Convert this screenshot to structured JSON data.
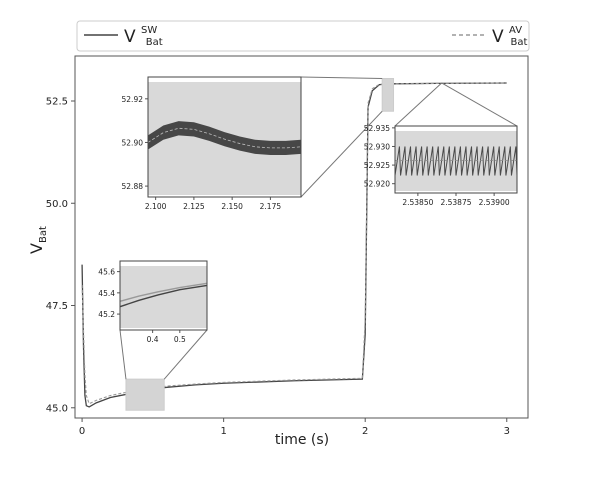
{
  "chart_data": [
    {
      "id": "main",
      "type": "line",
      "xlabel": "time (s)",
      "ylabel": {
        "base": "V",
        "sub": "Bat"
      },
      "xlim": [
        -0.05,
        3.15
      ],
      "ylim": [
        44.75,
        53.6
      ],
      "xticks": [
        0,
        1,
        2,
        3
      ],
      "xtick_labels": [
        "0",
        "1",
        "2",
        "3"
      ],
      "yticks": [
        45.0,
        47.5,
        50.0,
        52.5
      ],
      "ytick_labels": [
        "45.0",
        "47.5",
        "50.0",
        "52.5"
      ],
      "grid": false,
      "legend": {
        "placement": "top",
        "entries": [
          {
            "base": "V",
            "sup": "SW",
            "sub": "Bat",
            "style": "solid"
          },
          {
            "base": "V",
            "sup": "AV",
            "sub": "Bat",
            "style": "dashed"
          }
        ]
      },
      "series": [
        {
          "style": "solid",
          "color": "#444444",
          "x": [
            0.0,
            0.01,
            0.02,
            0.03,
            0.05,
            0.1,
            0.2,
            0.3,
            0.4,
            0.5,
            0.6,
            0.8,
            1.0,
            1.5,
            1.98,
            2.0,
            2.02,
            2.05,
            2.1,
            2.2,
            2.5,
            3.0
          ],
          "y": [
            48.5,
            46.5,
            45.3,
            45.05,
            45.02,
            45.12,
            45.25,
            45.32,
            45.4,
            45.46,
            45.5,
            45.56,
            45.6,
            45.66,
            45.7,
            46.8,
            52.35,
            52.75,
            52.9,
            52.92,
            52.93,
            52.94
          ]
        },
        {
          "style": "dashed",
          "color": "#999999",
          "x": [
            0.0,
            0.01,
            0.02,
            0.03,
            0.05,
            0.1,
            0.2,
            0.3,
            0.4,
            0.5,
            0.6,
            0.8,
            1.0,
            1.5,
            1.98,
            2.0,
            2.02,
            2.05,
            2.1,
            2.2,
            2.5,
            3.0
          ],
          "y": [
            48.0,
            46.9,
            45.8,
            45.3,
            45.1,
            45.18,
            45.3,
            45.37,
            45.43,
            45.49,
            45.53,
            45.58,
            45.62,
            45.68,
            45.72,
            47.2,
            52.45,
            52.8,
            52.91,
            52.92,
            52.93,
            52.94
          ]
        }
      ]
    },
    {
      "id": "inset_top",
      "type": "line",
      "xlim": [
        2.095,
        2.195
      ],
      "ylim": [
        52.875,
        52.93
      ],
      "xticks": [
        2.1,
        2.125,
        2.15,
        2.175
      ],
      "xtick_labels": [
        "2.100",
        "2.125",
        "2.150",
        "2.175"
      ],
      "yticks": [
        52.88,
        52.9,
        52.92
      ],
      "ytick_labels": [
        "52.88",
        "52.90",
        "52.92"
      ],
      "x": [
        2.095,
        2.105,
        2.115,
        2.125,
        2.135,
        2.145,
        2.155,
        2.165,
        2.175,
        2.185,
        2.195
      ],
      "y_center": [
        52.9,
        52.9045,
        52.9065,
        52.906,
        52.904,
        52.9015,
        52.8995,
        52.898,
        52.8975,
        52.8975,
        52.898
      ],
      "ripple_band": 0.0065
    },
    {
      "id": "inset_left",
      "type": "line",
      "xlim": [
        0.28,
        0.6
      ],
      "ylim": [
        45.05,
        45.7
      ],
      "xticks": [
        0.4,
        0.5
      ],
      "xtick_labels": [
        "0.4",
        "0.5"
      ],
      "yticks": [
        45.2,
        45.4,
        45.6
      ],
      "ytick_labels": [
        "45.2",
        "45.4",
        "45.6"
      ],
      "series": [
        {
          "style": "solid",
          "color": "#444444",
          "x": [
            0.28,
            0.35,
            0.42,
            0.5,
            0.6
          ],
          "y": [
            45.27,
            45.33,
            45.38,
            45.43,
            45.47
          ]
        },
        {
          "style": "solid",
          "color": "#999999",
          "x": [
            0.28,
            0.35,
            0.42,
            0.5,
            0.6
          ],
          "y": [
            45.32,
            45.37,
            45.41,
            45.45,
            45.49
          ]
        }
      ]
    },
    {
      "id": "inset_right",
      "type": "line",
      "xlim": [
        2.53835,
        2.53915
      ],
      "ylim": [
        52.9175,
        52.9355
      ],
      "xticks": [
        2.5385,
        2.53875,
        2.539
      ],
      "xtick_labels": [
        "2.53850",
        "2.53875",
        "2.53900"
      ],
      "yticks": [
        52.92,
        52.925,
        52.93,
        52.935
      ],
      "ytick_labels": [
        "52.920",
        "52.925",
        "52.930",
        "52.935"
      ],
      "sawtooth": {
        "cycles": 22,
        "y_low": 52.9222,
        "y_high": 52.93
      },
      "average_y": 52.9262
    }
  ]
}
